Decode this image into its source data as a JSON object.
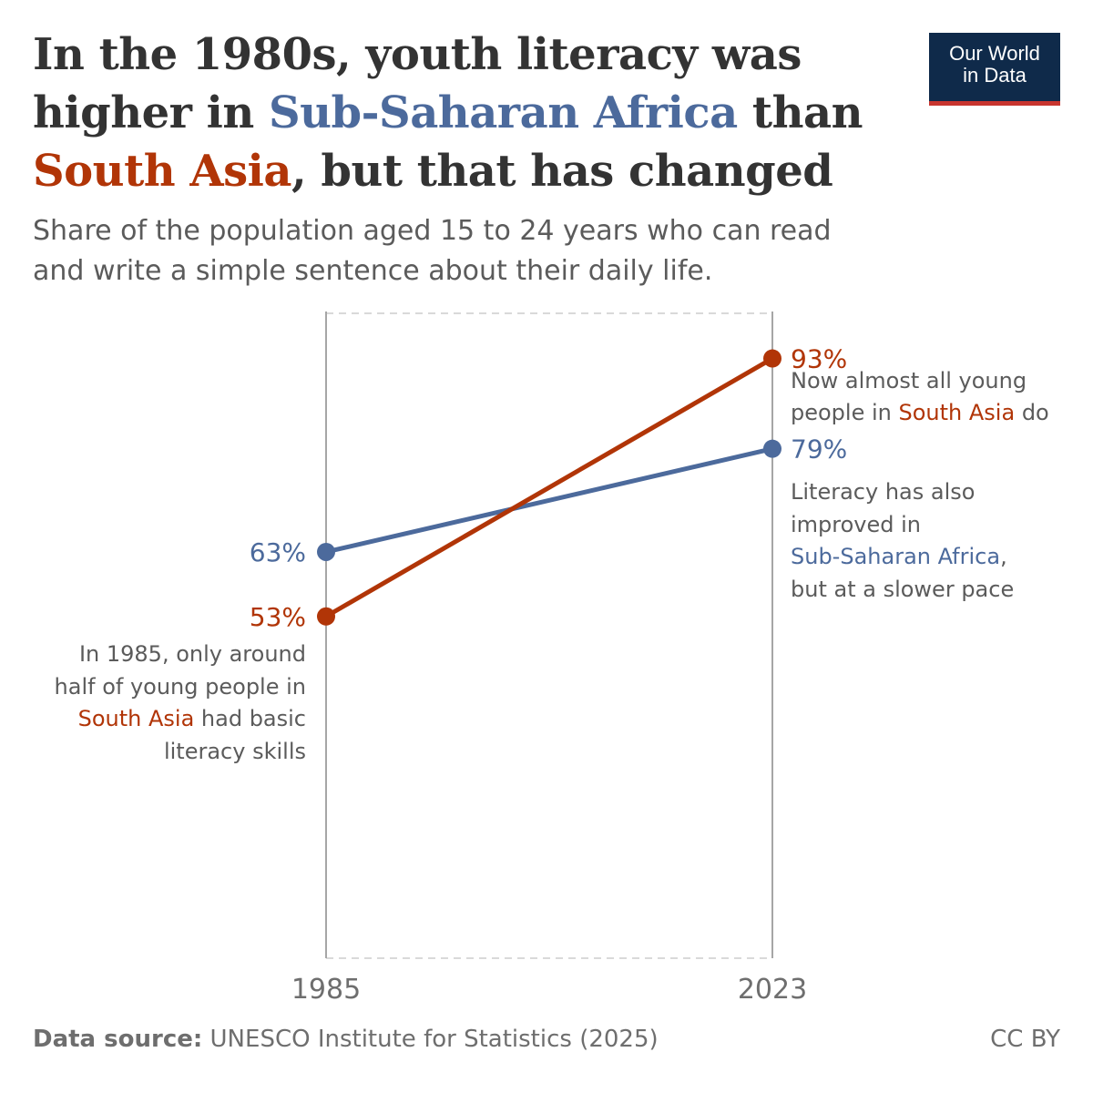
{
  "title": {
    "p1": "In the 1980s, youth literacy was higher in ",
    "p2": "Sub-Saharan Africa",
    "p3": " than ",
    "p4": "South Asia",
    "p5": ", but that has changed"
  },
  "subtitle": "Share of the population aged 15 to 24 years who can read and write a simple sentence about their daily life.",
  "logo": {
    "line1": "Our World",
    "line2": "in Data"
  },
  "footer": {
    "source_label": "Data source:",
    "source_text": " UNESCO Institute for Statistics (2025)",
    "license": "CC BY"
  },
  "colors": {
    "ssa": "#4c6a9c",
    "sa": "#b13507",
    "text": "#333333",
    "muted": "#5b5b5b"
  },
  "chart_data": {
    "type": "line",
    "x": [
      1985,
      2023
    ],
    "x_tick_labels": [
      "1985",
      "2023"
    ],
    "ylim": [
      0,
      100
    ],
    "grid": false,
    "series": [
      {
        "name": "Sub-Saharan Africa",
        "values": [
          63,
          79
        ],
        "labels": [
          "63%",
          "79%"
        ],
        "color": "#4c6a9c"
      },
      {
        "name": "South Asia",
        "values": [
          53,
          93
        ],
        "labels": [
          "53%",
          "93%"
        ],
        "color": "#b13507"
      }
    ],
    "annotations": {
      "south_asia_1985": [
        "In 1985, only around",
        "half of young people in",
        "South Asia had basic",
        "literacy skills"
      ],
      "south_asia_2023": [
        "Now almost all young",
        "people in South Asia do"
      ],
      "ssa_2023": [
        "Literacy has also",
        "improved in",
        "Sub-Saharan Africa,",
        "but at a slower pace"
      ]
    }
  }
}
